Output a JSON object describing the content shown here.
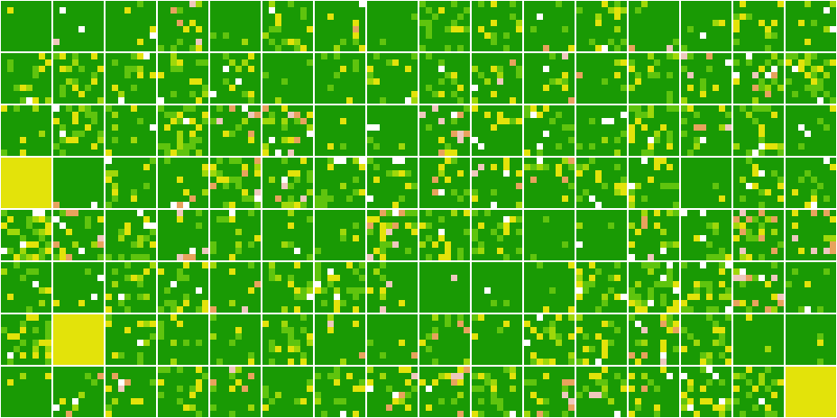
{
  "board": {
    "rows": 8,
    "cols": 16,
    "tile_cells": 8,
    "colors": {
      "0": "#199a04",
      "1": "#5fc40e",
      "2": "#e3e30a",
      "3": "#e7a35d",
      "4": "#eec8be",
      "5": "#ffffff",
      "6": "#9fd80a"
    },
    "solid_tiles": [
      {
        "row": 3,
        "col": 0,
        "color": "2"
      },
      {
        "row": 6,
        "col": 1,
        "color": "2"
      },
      {
        "row": 7,
        "col": 15,
        "color": "2"
      }
    ]
  }
}
